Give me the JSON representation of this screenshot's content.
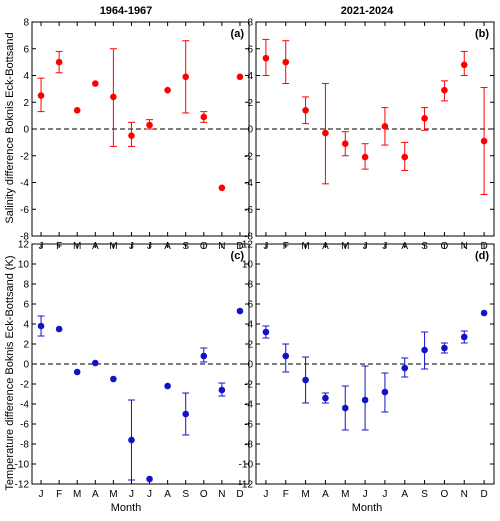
{
  "column_titles": [
    "1964-1967",
    "2021-2024"
  ],
  "ylabels": {
    "salinity": "Salinity difference Boknis Eck-Bottsand",
    "temperature": "Temperature difference Boknis Eck-Bottsand (K)"
  },
  "xlabel": "Month",
  "month_ticks": [
    "J",
    "F",
    "M",
    "A",
    "M",
    "J",
    "J",
    "A",
    "S",
    "O",
    "N",
    "D"
  ],
  "colors": {
    "salinity": "#ff0000",
    "temperature": "#1212cc"
  },
  "chart_data": [
    {
      "type": "scatter",
      "panel": "(a)",
      "title": "1964-1967",
      "xlabel": "",
      "ylabel": "Salinity difference Boknis Eck-Bottsand",
      "ylim": [
        -8,
        8
      ],
      "yticks": [
        -8,
        -6,
        -4,
        -2,
        0,
        2,
        4,
        6,
        8
      ],
      "categories": [
        "J",
        "F",
        "M",
        "A",
        "M",
        "J",
        "J",
        "A",
        "S",
        "O",
        "N",
        "D"
      ],
      "values": [
        2.5,
        5.0,
        1.4,
        3.4,
        2.4,
        -0.5,
        0.3,
        2.9,
        3.9,
        0.9,
        -4.4,
        3.9
      ],
      "err_low": [
        1.3,
        4.2,
        null,
        null,
        -1.3,
        -1.3,
        0.0,
        null,
        1.2,
        0.5,
        null,
        null
      ],
      "err_high": [
        3.8,
        5.8,
        null,
        null,
        6.0,
        0.5,
        0.7,
        null,
        6.6,
        1.3,
        null,
        null
      ]
    },
    {
      "type": "scatter",
      "panel": "(b)",
      "title": "2021-2024",
      "xlabel": "",
      "ylabel": "",
      "ylim": [
        -8,
        8
      ],
      "yticks": [
        -8,
        -6,
        -4,
        -2,
        0,
        2,
        4,
        6,
        8
      ],
      "categories": [
        "J",
        "F",
        "M",
        "A",
        "M",
        "J",
        "J",
        "A",
        "S",
        "O",
        "N",
        "D"
      ],
      "values": [
        5.3,
        5.0,
        1.4,
        -0.3,
        -1.1,
        -2.1,
        0.2,
        -2.1,
        0.8,
        2.9,
        4.8,
        -0.9
      ],
      "err_low": [
        4.0,
        3.4,
        0.4,
        -4.1,
        -2.0,
        -3.0,
        -1.2,
        -3.1,
        -0.1,
        2.1,
        4.0,
        -4.9
      ],
      "err_high": [
        6.7,
        6.6,
        2.4,
        3.4,
        -0.2,
        -1.1,
        1.6,
        -1.0,
        1.6,
        3.6,
        5.8,
        3.1
      ]
    },
    {
      "type": "scatter",
      "panel": "(c)",
      "title": "",
      "xlabel": "Month",
      "ylabel": "Temperature difference Boknis Eck-Bottsand (K)",
      "ylim": [
        -12,
        12
      ],
      "yticks": [
        -12,
        -10,
        -8,
        -6,
        -4,
        -2,
        0,
        2,
        4,
        6,
        8,
        10,
        12
      ],
      "categories": [
        "J",
        "F",
        "M",
        "A",
        "M",
        "J",
        "J",
        "A",
        "S",
        "O",
        "N",
        "D"
      ],
      "values": [
        3.8,
        3.5,
        -0.8,
        0.1,
        -1.5,
        -7.6,
        -11.5,
        -2.2,
        -5.0,
        0.8,
        -2.6,
        5.3
      ],
      "err_low": [
        2.8,
        null,
        null,
        null,
        null,
        -11.6,
        null,
        null,
        -7.1,
        0.2,
        -3.2,
        null
      ],
      "err_high": [
        4.8,
        null,
        null,
        null,
        null,
        -3.6,
        null,
        null,
        -2.9,
        1.6,
        -1.9,
        null
      ]
    },
    {
      "type": "scatter",
      "panel": "(d)",
      "title": "",
      "xlabel": "Month",
      "ylabel": "",
      "ylim": [
        -12,
        12
      ],
      "yticks": [
        -12,
        -10,
        -8,
        -6,
        -4,
        -2,
        0,
        2,
        4,
        6,
        8,
        10,
        12
      ],
      "categories": [
        "J",
        "F",
        "M",
        "A",
        "M",
        "J",
        "J",
        "A",
        "S",
        "O",
        "N",
        "D"
      ],
      "values": [
        3.2,
        0.8,
        -1.6,
        -3.4,
        -4.4,
        -3.6,
        -2.8,
        -0.4,
        1.4,
        1.6,
        2.7,
        5.1
      ],
      "err_low": [
        2.6,
        -0.8,
        -3.9,
        -3.9,
        -6.6,
        -6.6,
        -4.8,
        -1.3,
        -0.5,
        1.1,
        2.1,
        null
      ],
      "err_high": [
        3.8,
        2.0,
        0.7,
        -2.9,
        -2.2,
        -0.2,
        -0.9,
        0.6,
        3.2,
        2.1,
        3.3,
        null
      ]
    }
  ]
}
